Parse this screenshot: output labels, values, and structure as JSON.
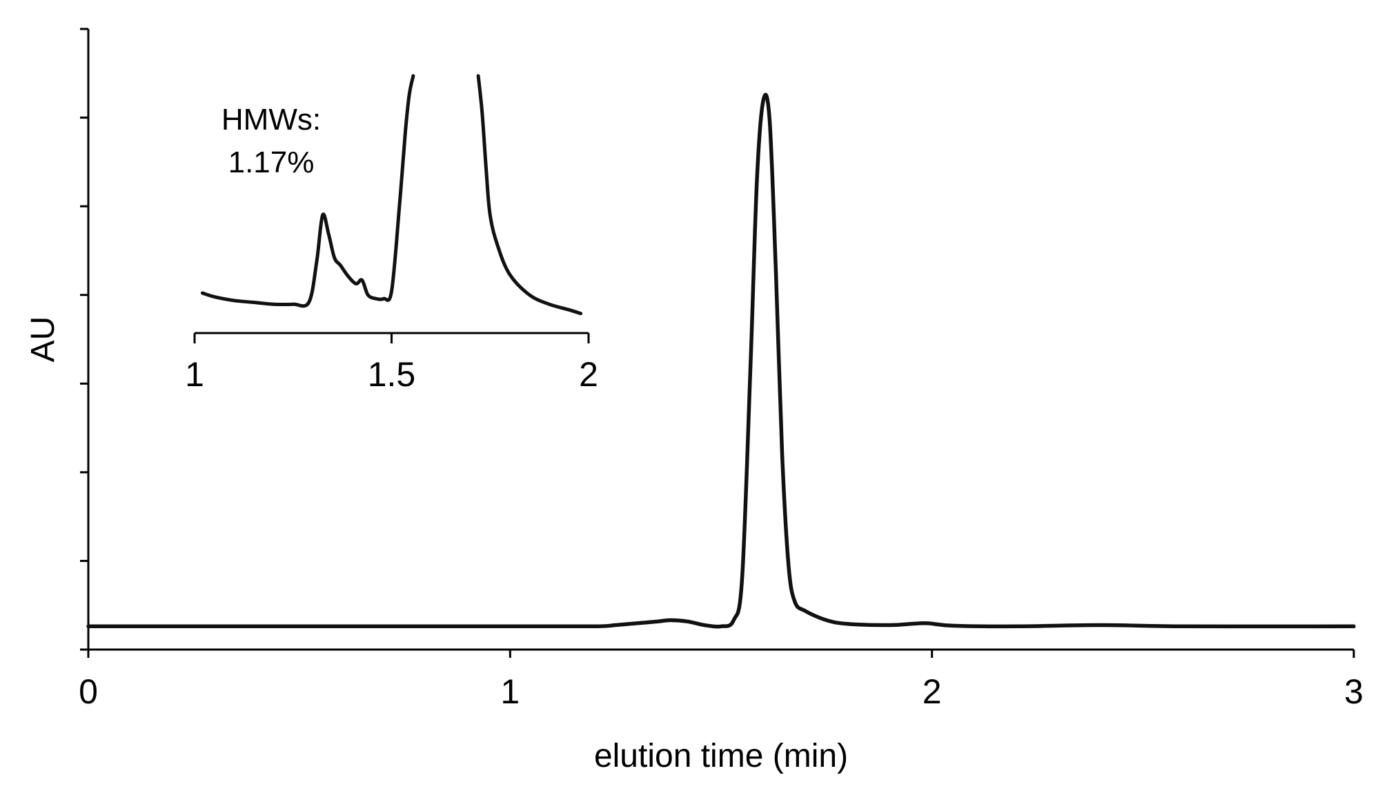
{
  "chart_data": [
    {
      "type": "line",
      "panel": "main",
      "xlabel": "elution time (min)",
      "ylabel": "AU",
      "xlim": [
        0,
        3
      ],
      "ylim": [
        0,
        1
      ],
      "x_ticks": [
        0,
        1,
        2,
        3
      ],
      "x_tick_labels": [
        "0",
        "1",
        "2",
        "3"
      ],
      "y_tick_count": 8,
      "y_tick_labels_shown": false,
      "grid": false,
      "series": [
        {
          "x": [
            0,
            0.5,
            1.0,
            1.2,
            1.25,
            1.3,
            1.35,
            1.38,
            1.42,
            1.46,
            1.5,
            1.53,
            1.55,
            1.57,
            1.585,
            1.6,
            1.615,
            1.63,
            1.645,
            1.66,
            1.675,
            1.7,
            1.75,
            1.8,
            1.9,
            1.95,
            1.99,
            2.05,
            2.2,
            2.4,
            2.6,
            3.0
          ],
          "y": [
            0.02,
            0.02,
            0.02,
            0.02,
            0.022,
            0.025,
            0.028,
            0.03,
            0.028,
            0.022,
            0.02,
            0.03,
            0.1,
            0.45,
            0.75,
            0.88,
            0.85,
            0.6,
            0.3,
            0.12,
            0.06,
            0.045,
            0.03,
            0.024,
            0.022,
            0.024,
            0.025,
            0.021,
            0.02,
            0.022,
            0.02,
            0.02
          ]
        }
      ]
    },
    {
      "type": "line",
      "panel": "inset",
      "xlim": [
        1,
        2
      ],
      "x_ticks": [
        1,
        1.5,
        2
      ],
      "x_tick_labels": [
        "1",
        "1.5",
        "2"
      ],
      "annotation": {
        "line1": "HMWs:",
        "line2": "1.17%"
      },
      "series": [
        {
          "x": [
            1.02,
            1.05,
            1.1,
            1.15,
            1.2,
            1.25,
            1.29,
            1.31,
            1.325,
            1.34,
            1.355,
            1.37,
            1.39,
            1.41,
            1.425,
            1.44,
            1.46,
            1.48,
            1.5,
            1.52,
            1.535,
            1.545,
            1.555
          ],
          "y": [
            0.13,
            0.11,
            0.09,
            0.08,
            0.07,
            0.07,
            0.08,
            0.3,
            0.55,
            0.45,
            0.32,
            0.28,
            0.22,
            0.18,
            0.2,
            0.12,
            0.1,
            0.1,
            0.14,
            0.6,
            1.0,
            1.2,
            1.3
          ]
        },
        {
          "x": [
            1.72,
            1.73,
            1.74,
            1.75,
            1.77,
            1.8,
            1.85,
            1.9,
            1.95,
            1.98
          ],
          "y": [
            1.3,
            1.1,
            0.8,
            0.55,
            0.38,
            0.23,
            0.12,
            0.07,
            0.04,
            0.02
          ]
        }
      ]
    }
  ]
}
